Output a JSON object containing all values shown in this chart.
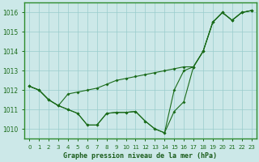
{
  "xlabel": "Graphe pression niveau de la mer (hPa)",
  "background_color": "#cce8e8",
  "grid_color": "#99cccc",
  "line_color": "#1a6b1a",
  "ylim": [
    1009.5,
    1016.5
  ],
  "xlim": [
    -0.5,
    23.5
  ],
  "yticks": [
    1010,
    1011,
    1012,
    1013,
    1014,
    1015,
    1016
  ],
  "xtick_labels": [
    "0",
    "1",
    "2",
    "3",
    "4",
    "5",
    "6",
    "7",
    "8",
    "9",
    "10",
    "11",
    "12",
    "13",
    "14",
    "15",
    "16",
    "17",
    "18",
    "19",
    "20",
    "21",
    "22",
    "23"
  ],
  "s1_x": [
    0,
    1,
    2,
    3,
    4,
    5,
    6,
    7,
    8,
    9,
    10,
    11,
    12,
    13,
    14,
    15,
    16,
    17,
    18,
    19,
    20,
    21,
    22,
    23
  ],
  "s1_y": [
    1012.2,
    1012.0,
    1011.5,
    1011.2,
    1011.0,
    1010.8,
    1010.2,
    1010.2,
    1010.8,
    1010.85,
    1010.85,
    1010.9,
    1010.4,
    1010.0,
    1009.8,
    1010.9,
    1011.4,
    1013.2,
    1014.0,
    1015.5,
    1016.0,
    1015.6,
    1016.0,
    1016.1
  ],
  "s2_x": [
    0,
    1,
    2,
    3,
    4,
    5,
    6,
    7,
    8,
    9,
    10,
    11,
    12,
    13,
    14,
    15,
    16,
    17,
    18,
    19,
    20,
    21,
    22,
    23
  ],
  "s2_y": [
    1012.2,
    1012.0,
    1011.5,
    1011.2,
    1011.0,
    1010.8,
    1010.2,
    1010.2,
    1010.8,
    1010.85,
    1010.85,
    1010.9,
    1010.4,
    1010.0,
    1009.8,
    1012.0,
    1013.0,
    1013.2,
    1014.0,
    1015.5,
    1016.0,
    1015.6,
    1016.0,
    1016.1
  ],
  "s3_x": [
    0,
    1,
    2,
    3,
    4,
    5,
    6,
    7,
    8,
    9,
    10,
    11,
    12,
    13,
    14,
    15,
    16,
    17,
    18,
    19,
    20,
    21,
    22,
    23
  ],
  "s3_y": [
    1012.2,
    1012.0,
    1011.5,
    1011.2,
    1011.8,
    1011.9,
    1012.0,
    1012.1,
    1012.3,
    1012.5,
    1012.6,
    1012.7,
    1012.8,
    1012.9,
    1013.0,
    1013.1,
    1013.2,
    1013.2,
    1014.0,
    1015.5,
    1016.0,
    1015.6,
    1016.0,
    1016.1
  ]
}
